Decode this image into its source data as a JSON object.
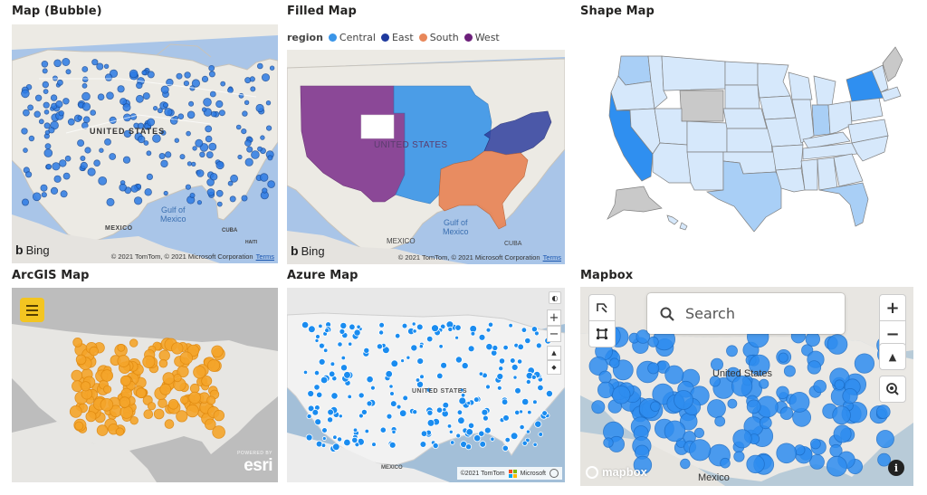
{
  "tiles": {
    "bubble": {
      "title": "Map (Bubble)",
      "labels": {
        "country": "UNITED STATES",
        "gulf": "Gulf of\nMexico",
        "mexico": "MEXICO",
        "cuba": "CUBA",
        "haiti": "HAITI"
      },
      "bing": "Bing",
      "attribution": "© 2021 TomTom, © 2021 Microsoft Corporation",
      "terms": "Terms"
    },
    "filled": {
      "title": "Filled Map",
      "legend": {
        "title": "region",
        "items": [
          {
            "label": "Central",
            "color": "#3a95e8"
          },
          {
            "label": "East",
            "color": "#1f3a9e"
          },
          {
            "label": "South",
            "color": "#e8875a"
          },
          {
            "label": "West",
            "color": "#6c1f7a"
          }
        ]
      },
      "labels": {
        "country": "UNITED STATES",
        "gulf": "Gulf of\nMexico",
        "mexico": "MEXICO",
        "cuba": "CUBA"
      },
      "bing": "Bing",
      "attribution": "© 2021 TomTom, © 2021 Microsoft Corporation",
      "terms": "Terms"
    },
    "shape": {
      "title": "Shape Map"
    },
    "arcgis": {
      "title": "ArcGIS Map",
      "esri_small": "POWERED BY",
      "esri": "esri"
    },
    "azure": {
      "title": "Azure Map",
      "labels": {
        "country": "UNITED STATES",
        "mexico": "MEXICO"
      },
      "attribution": "©2021 TomTom",
      "microsoft": "Microsoft"
    },
    "mapbox": {
      "title": "Mapbox",
      "search_placeholder": "Search",
      "labels": {
        "country": "United States",
        "mexico": "Mexico"
      },
      "logo": "mapbox",
      "info": "i"
    }
  },
  "colors": {
    "water": "#a9c5e8",
    "land": "#e5e3df",
    "bubble": "#2c7be5",
    "azure_dot": "#1a8cf0",
    "arcgis_dot": "#f5a52a",
    "mapbox_dot": "#2e8df0",
    "shape_light": "#d6e8fb",
    "shape_mid": "#a9cff6",
    "shape_dark": "#2f8ff0",
    "shape_gray": "#c9c9c9"
  }
}
